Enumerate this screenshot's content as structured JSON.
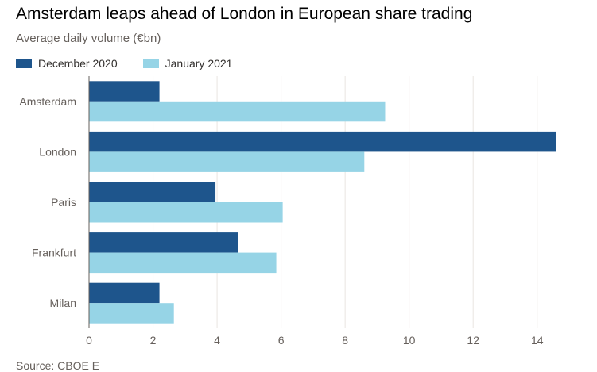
{
  "title": "Amsterdam leaps ahead of London in European share trading",
  "subtitle": "Average daily volume (€bn)",
  "source": "Source: CBOE E",
  "colors": {
    "dec": "#1e558c",
    "jan": "#96d4e6",
    "grid": "#e9e5e1",
    "axis": "#66605c"
  },
  "chart_data": {
    "type": "bar",
    "orientation": "horizontal",
    "title": "Amsterdam leaps ahead of London in European share trading",
    "subtitle": "Average daily volume (€bn)",
    "xlabel": "",
    "ylabel": "",
    "categories": [
      "Amsterdam",
      "London",
      "Paris",
      "Frankfurt",
      "Milan"
    ],
    "series": [
      {
        "name": "December 2020",
        "values": [
          2.2,
          14.6,
          3.95,
          4.65,
          2.2
        ]
      },
      {
        "name": "January 2021",
        "values": [
          9.25,
          8.6,
          6.05,
          5.85,
          2.65
        ]
      }
    ],
    "xlim": [
      0,
      15
    ],
    "xticks": [
      0,
      2,
      4,
      6,
      8,
      10,
      12,
      14
    ],
    "grid": true,
    "legend": "top-left"
  }
}
